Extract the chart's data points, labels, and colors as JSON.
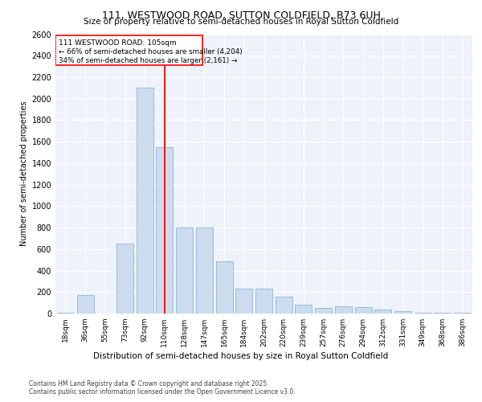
{
  "title": "111, WESTWOOD ROAD, SUTTON COLDFIELD, B73 6UH",
  "subtitle": "Size of property relative to semi-detached houses in Royal Sutton Coldfield",
  "xlabel": "Distribution of semi-detached houses by size in Royal Sutton Coldfield",
  "ylabel": "Number of semi-detached properties",
  "categories": [
    "18sqm",
    "36sqm",
    "55sqm",
    "73sqm",
    "92sqm",
    "110sqm",
    "128sqm",
    "147sqm",
    "165sqm",
    "184sqm",
    "202sqm",
    "220sqm",
    "239sqm",
    "257sqm",
    "276sqm",
    "294sqm",
    "312sqm",
    "331sqm",
    "349sqm",
    "368sqm",
    "386sqm"
  ],
  "values": [
    5,
    175,
    0,
    650,
    2100,
    1550,
    800,
    800,
    490,
    230,
    230,
    155,
    80,
    55,
    65,
    60,
    35,
    20,
    5,
    5,
    5
  ],
  "bar_color": "#ccdcee",
  "bar_edge_color": "#8ab4d4",
  "vline_x_index": 5,
  "annotation_title": "111 WESTWOOD ROAD: 105sqm",
  "annotation_line1": "← 66% of semi-detached houses are smaller (4,204)",
  "annotation_line2": "34% of semi-detached houses are larger (2,161) →",
  "ylim": [
    0,
    2600
  ],
  "yticks": [
    0,
    200,
    400,
    600,
    800,
    1000,
    1200,
    1400,
    1600,
    1800,
    2000,
    2200,
    2400,
    2600
  ],
  "background_color": "#eef2fb",
  "footer_line1": "Contains HM Land Registry data © Crown copyright and database right 2025.",
  "footer_line2": "Contains public sector information licensed under the Open Government Licence v3.0."
}
